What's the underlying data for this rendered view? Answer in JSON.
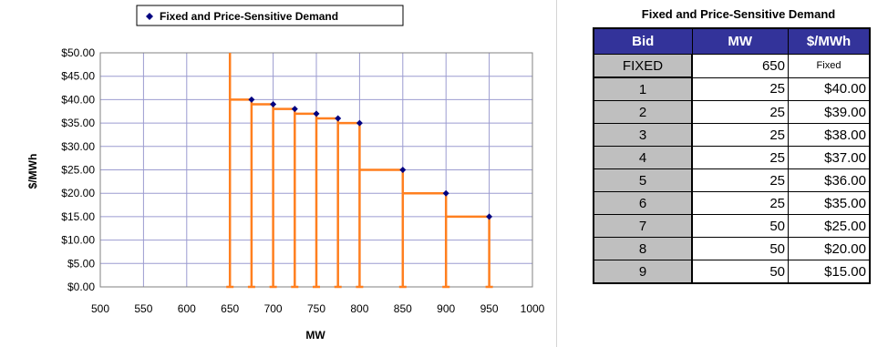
{
  "chart_data": {
    "type": "line",
    "legend": "Fixed and Price-Sensitive Demand",
    "legend_placement": "top",
    "xlabel": "MW",
    "ylabel": "$/MWh",
    "xlim": [
      500,
      1000
    ],
    "ylim": [
      0,
      50
    ],
    "x_ticks": [
      "500",
      "550",
      "600",
      "650",
      "700",
      "750",
      "800",
      "850",
      "900",
      "950",
      "1000"
    ],
    "y_ticks": [
      "$0.00",
      "$5.00",
      "$10.00",
      "$15.00",
      "$20.00",
      "$25.00",
      "$30.00",
      "$35.00",
      "$40.00",
      "$45.00",
      "$50.00"
    ],
    "grid": true,
    "line_color": "#ff7f1f",
    "marker_color": "#000080",
    "fixed": {
      "x": 650,
      "y_top": 50
    },
    "points": [
      {
        "x": 675,
        "y": 40
      },
      {
        "x": 700,
        "y": 39
      },
      {
        "x": 725,
        "y": 38
      },
      {
        "x": 750,
        "y": 37
      },
      {
        "x": 775,
        "y": 36
      },
      {
        "x": 800,
        "y": 35
      },
      {
        "x": 850,
        "y": 25
      },
      {
        "x": 900,
        "y": 20
      },
      {
        "x": 950,
        "y": 15
      }
    ]
  },
  "table": {
    "title": "Fixed and Price-Sensitive Demand",
    "headers": [
      "Bid",
      "MW",
      "$/MWh"
    ],
    "rows": [
      [
        "FIXED",
        "650",
        "Fixed"
      ],
      [
        "1",
        "25",
        "$40.00"
      ],
      [
        "2",
        "25",
        "$39.00"
      ],
      [
        "3",
        "25",
        "$38.00"
      ],
      [
        "4",
        "25",
        "$37.00"
      ],
      [
        "5",
        "25",
        "$36.00"
      ],
      [
        "6",
        "25",
        "$35.00"
      ],
      [
        "7",
        "50",
        "$25.00"
      ],
      [
        "8",
        "50",
        "$20.00"
      ],
      [
        "9",
        "50",
        "$15.00"
      ]
    ]
  }
}
